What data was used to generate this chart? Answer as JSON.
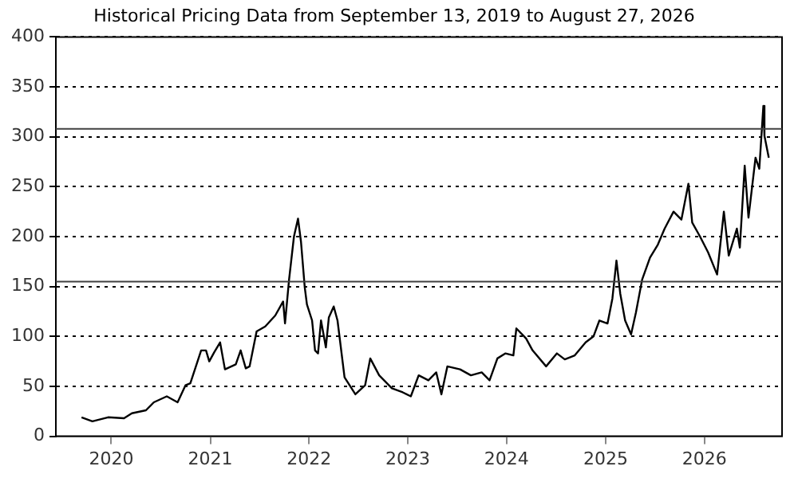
{
  "chart_data": {
    "type": "line",
    "title": "Historical Pricing Data from September 13, 2019 to August 27, 2026",
    "x": [
      "2019-09-13",
      "2019-10-23",
      "2019-12-20",
      "2020-02-17",
      "2020-03-17",
      "2020-05-08",
      "2020-06-06",
      "2020-07-24",
      "2020-09-02",
      "2020-10-01",
      "2020-10-19",
      "2020-11-28",
      "2020-12-16",
      "2020-12-28",
      "2021-01-15",
      "2021-02-06",
      "2021-02-24",
      "2021-04-05",
      "2021-04-23",
      "2021-05-12",
      "2021-05-26",
      "2021-06-21",
      "2021-07-23",
      "2021-08-29",
      "2021-09-27",
      "2021-10-04",
      "2021-10-19",
      "2021-11-06",
      "2021-11-21",
      "2021-12-02",
      "2021-12-16",
      "2021-12-24",
      "2022-01-12",
      "2022-01-23",
      "2022-02-03",
      "2022-02-14",
      "2022-03-04",
      "2022-03-15",
      "2022-04-02",
      "2022-04-16",
      "2022-05-12",
      "2022-06-21",
      "2022-07-27",
      "2022-08-15",
      "2022-09-17",
      "2022-11-03",
      "2022-12-13",
      "2023-01-12",
      "2023-02-10",
      "2023-03-18",
      "2023-04-16",
      "2023-05-05",
      "2023-05-27",
      "2023-07-13",
      "2023-08-22",
      "2023-10-01",
      "2023-10-30",
      "2023-11-28",
      "2023-12-28",
      "2024-01-26",
      "2024-02-06",
      "2024-03-13",
      "2024-04-06",
      "2024-05-26",
      "2024-07-05",
      "2024-08-03",
      "2024-09-09",
      "2024-10-19",
      "2024-11-17",
      "2024-12-09",
      "2025-01-08",
      "2025-01-26",
      "2025-02-10",
      "2025-02-24",
      "2025-03-14",
      "2025-04-05",
      "2025-04-23",
      "2025-05-16",
      "2025-06-14",
      "2025-07-13",
      "2025-08-07",
      "2025-09-09",
      "2025-10-08",
      "2025-11-03",
      "2025-11-17",
      "2025-12-16",
      "2026-01-15",
      "2026-02-17",
      "2026-03-14",
      "2026-04-01",
      "2026-05-01",
      "2026-05-12",
      "2026-05-30",
      "2026-06-13",
      "2026-07-09",
      "2026-07-23",
      "2026-08-07",
      "2026-08-11",
      "2026-08-27"
    ],
    "series": [
      {
        "color": "#000000",
        "values": [
          19,
          15,
          19,
          18,
          23,
          26,
          34,
          40,
          34,
          51,
          53,
          86,
          86,
          75,
          84,
          94,
          67,
          72,
          86,
          68,
          70,
          105,
          110,
          121,
          135,
          113,
          157,
          200,
          218,
          195,
          149,
          132,
          116,
          86,
          83,
          116,
          89,
          119,
          130,
          116,
          59,
          42,
          51,
          78,
          61,
          48,
          44,
          40,
          61,
          56,
          64,
          42,
          70,
          67,
          61,
          64,
          56,
          78,
          83,
          81,
          108,
          98,
          86,
          70,
          83,
          77,
          81,
          94,
          100,
          116,
          113,
          138,
          176,
          143,
          116,
          102,
          124,
          157,
          179,
          192,
          208,
          225,
          217,
          253,
          214,
          200,
          184,
          162,
          225,
          181,
          208,
          189,
          271,
          219,
          279,
          268,
          331,
          301,
          279
        ]
      }
    ],
    "xlim": [
      "2019-06-10",
      "2026-10-15"
    ],
    "xticks": [
      "2020",
      "2021",
      "2022",
      "2023",
      "2024",
      "2025",
      "2026"
    ],
    "ylim": [
      0,
      400
    ],
    "yticks": [
      0,
      50,
      100,
      150,
      200,
      250,
      300,
      350,
      400
    ],
    "ref_lines": [
      {
        "axis": "y",
        "value": 308,
        "color": "#404040"
      },
      {
        "axis": "y",
        "value": 155,
        "color": "#404040"
      }
    ],
    "grid": "y",
    "legend": false,
    "marker": "none",
    "line_style": "solid"
  }
}
